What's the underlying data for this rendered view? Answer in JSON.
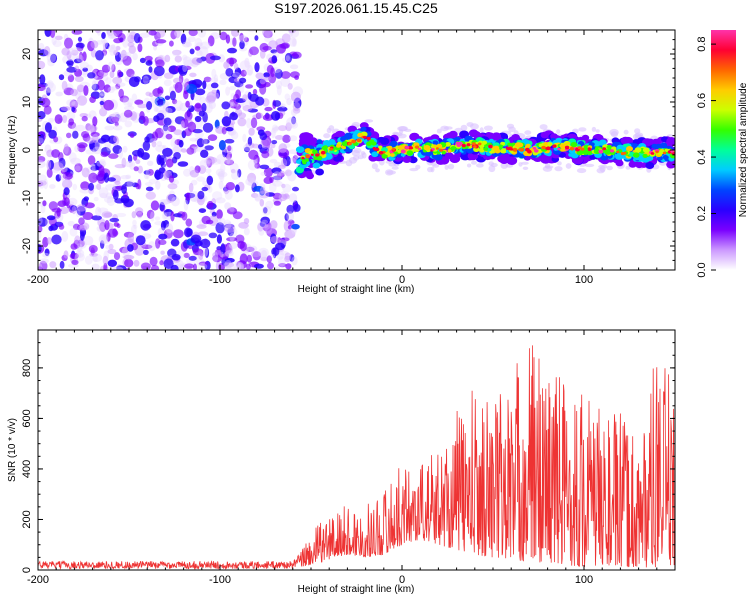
{
  "title": "S197.2026.061.15.45.C25",
  "chart_data": [
    {
      "type": "heatmap",
      "title": "S197.2026.061.15.45.C25",
      "xlabel": "Height of straight line (km)",
      "ylabel": "Frequency (Hz)",
      "xlim": [
        -200,
        150
      ],
      "ylim": [
        -25,
        25
      ],
      "xticks": [
        -200,
        -100,
        0,
        100
      ],
      "yticks": [
        -20,
        -10,
        0,
        10,
        20
      ],
      "x_tick_labels": [
        "-200",
        "-100",
        "0",
        "100"
      ],
      "y_tick_labels": [
        "-20",
        "-10",
        "0",
        "10",
        "20"
      ],
      "colorbar": {
        "label": "Normalized spectral amplitude",
        "range": [
          0,
          0.85
        ],
        "ticks": [
          0,
          0.2,
          0.4,
          0.6,
          0.8
        ],
        "tick_labels": [
          "0.0",
          "0.2",
          "0.4",
          "0.6",
          "0.8"
        ],
        "colors": [
          "#ffffff",
          "#cc99ff",
          "#7a00ff",
          "#2a00ff",
          "#0044ff",
          "#00ccff",
          "#00ff99",
          "#33ff00",
          "#ccff00",
          "#ffcc00",
          "#ff6600",
          "#ff0033",
          "#ff33aa"
        ]
      },
      "noise_region": {
        "x_range": [
          -200,
          -57
        ],
        "y_range": [
          -25,
          25
        ],
        "amplitude_range": [
          0.0,
          0.25
        ]
      },
      "signal_band": {
        "x": [
          -57,
          -53,
          -45,
          -35,
          -25,
          -20,
          -15,
          -10,
          0,
          10,
          20,
          30,
          40,
          50,
          60,
          70,
          80,
          90,
          100,
          110,
          120,
          130,
          140,
          150
        ],
        "freq": [
          -2,
          -1.5,
          -0.5,
          0.5,
          2,
          3,
          0.5,
          -0.5,
          0,
          0.5,
          0,
          1,
          1,
          0.5,
          0.5,
          0,
          0.5,
          0.5,
          0,
          0,
          -0.5,
          -0.5,
          -0.5,
          -0.5
        ],
        "amplitude_peak": 0.85
      }
    },
    {
      "type": "line",
      "xlabel": "Height of straight line (km)",
      "ylabel": "SNR (10 * v/v)",
      "xlim": [
        -200,
        150
      ],
      "ylim": [
        0,
        950
      ],
      "xticks": [
        -200,
        -100,
        0,
        100
      ],
      "yticks": [
        0,
        200,
        400,
        600,
        800
      ],
      "x_tick_labels": [
        "-200",
        "-100",
        "0",
        "100"
      ],
      "y_tick_labels": [
        "0",
        "200",
        "400",
        "600",
        "800"
      ],
      "color": "#ee3333",
      "series": [
        {
          "name": "SNR",
          "envelope": {
            "x": [
              -200,
              -60,
              -57,
              -50,
              -40,
              -30,
              -20,
              -10,
              -5,
              0,
              10,
              20,
              30,
              40,
              50,
              60,
              70,
              80,
              90,
              100,
              110,
              120,
              130,
              140,
              150
            ],
            "low": [
              5,
              5,
              10,
              20,
              40,
              60,
              50,
              60,
              80,
              100,
              120,
              100,
              80,
              60,
              50,
              40,
              30,
              30,
              20,
              10,
              20,
              10,
              10,
              10,
              20
            ],
            "high": [
              35,
              35,
              60,
              150,
              230,
              260,
              250,
              330,
              380,
              420,
              440,
              480,
              640,
              730,
              710,
              800,
              940,
              860,
              800,
              730,
              650,
              620,
              560,
              860,
              750
            ]
          }
        }
      ]
    }
  ]
}
